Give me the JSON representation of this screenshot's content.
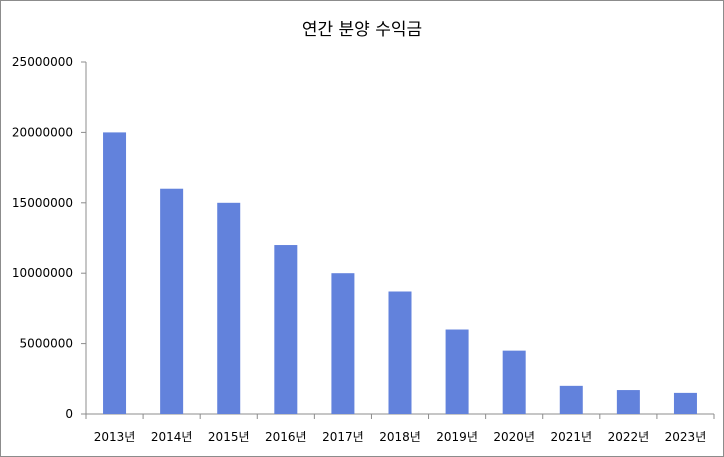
{
  "chart_data": {
    "type": "bar",
    "title": "연간 분양 수익금",
    "xlabel": "",
    "ylabel": "",
    "categories": [
      "2013년",
      "2014년",
      "2015년",
      "2016년",
      "2017년",
      "2018년",
      "2019년",
      "2020년",
      "2021년",
      "2022년",
      "2023년"
    ],
    "values": [
      20000000,
      16000000,
      15000000,
      12000000,
      10000000,
      8700000,
      6000000,
      4500000,
      2000000,
      1700000,
      1500000
    ],
    "ylim": [
      0,
      25000000
    ],
    "yticks": [
      "0",
      "5000000",
      "10000000",
      "15000000",
      "20000000",
      "25000000"
    ],
    "grid": false,
    "legend": "none",
    "colors": {
      "bar": "#6282dc",
      "axis": "#8c8c8c"
    }
  }
}
